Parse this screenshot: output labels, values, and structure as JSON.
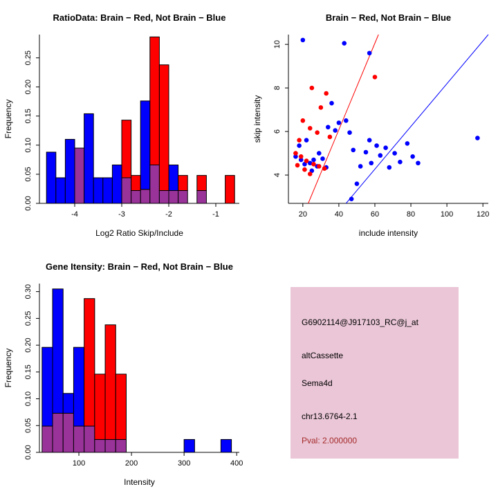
{
  "colors": {
    "brain_red": "#ff0000",
    "not_brain_blue": "#0000ff",
    "overlap_purple": "#993399",
    "panel_pink": "#eac6d6",
    "pval_red": "#a52a2a"
  },
  "chart_data": [
    {
      "id": "ratio_hist",
      "type": "bar",
      "title": "RatioData: Brain − Red, Not Brain − Blue",
      "xlabel": "Log2 Ratio Skip/Include",
      "ylabel": "Frequency",
      "xlim": [
        -4.75,
        -0.5
      ],
      "ylim": [
        0,
        0.29
      ],
      "xticks": [
        -4,
        -3,
        -2,
        -1
      ],
      "xtick_labels": [
        "-4",
        "-3",
        "-2",
        "-1"
      ],
      "yticks": [
        0,
        0.05,
        0.1,
        0.15,
        0.2,
        0.25
      ],
      "ytick_labels": [
        "0.00",
        "0.05",
        "0.10",
        "0.15",
        "0.20",
        "0.25"
      ],
      "bin_width": 0.2,
      "bin_left": [
        -4.6,
        -4.4,
        -4.2,
        -4.0,
        -3.8,
        -3.6,
        -3.4,
        -3.2,
        -3.0,
        -2.8,
        -2.6,
        -2.4,
        -2.2,
        -2.0,
        -1.8,
        -1.6,
        -1.4,
        -1.2,
        -1.0,
        -0.8
      ],
      "overlap_color": "#993399",
      "series": [
        {
          "name": "Not Brain (blue)",
          "color": "#0000ff",
          "values": [
            0.088,
            0.044,
            0.11,
            0.095,
            0.154,
            0.044,
            0.044,
            0.066,
            0.044,
            0.022,
            0.176,
            0.066,
            0.022,
            0.066,
            0.022,
            0,
            0.022,
            0,
            0,
            0
          ]
        },
        {
          "name": "Brain (red)",
          "color": "#ff0000",
          "values": [
            0,
            0,
            0,
            0.095,
            0,
            0,
            0,
            0,
            0.143,
            0.048,
            0.024,
            0.286,
            0.238,
            0.022,
            0.048,
            0,
            0.048,
            0,
            0,
            0.048
          ]
        }
      ]
    },
    {
      "id": "scatter",
      "type": "scatter",
      "title": "Brain − Red, Not Brain − Blue",
      "xlabel": "include intensity",
      "ylabel": "skip intensity",
      "xlim": [
        12,
        123
      ],
      "ylim": [
        2.7,
        10.45
      ],
      "xticks": [
        20,
        40,
        60,
        80,
        100,
        120
      ],
      "xtick_labels": [
        "20",
        "40",
        "60",
        "80",
        "100",
        "120"
      ],
      "yticks": [
        4,
        6,
        8,
        10
      ],
      "ytick_labels": [
        "4",
        "6",
        "8",
        "10"
      ],
      "series": [
        {
          "name": "Not Brain (blue)",
          "color": "#0000ff",
          "points": [
            [
              20,
              10.2
            ],
            [
              43,
              10.05
            ],
            [
              57,
              9.6
            ],
            [
              36,
              7.3
            ],
            [
              40,
              6.4
            ],
            [
              44,
              6.5
            ],
            [
              38,
              6.05
            ],
            [
              46,
              5.95
            ],
            [
              34,
              6.2
            ],
            [
              22,
              5.6
            ],
            [
              18,
              5.35
            ],
            [
              16,
              4.85
            ],
            [
              19,
              4.7
            ],
            [
              21,
              4.5
            ],
            [
              24,
              4.55
            ],
            [
              26,
              4.7
            ],
            [
              28,
              4.4
            ],
            [
              31,
              4.75
            ],
            [
              33,
              4.35
            ],
            [
              25,
              4.2
            ],
            [
              29,
              5.0
            ],
            [
              48,
              5.15
            ],
            [
              52,
              4.4
            ],
            [
              55,
              5.05
            ],
            [
              58,
              4.55
            ],
            [
              61,
              5.35
            ],
            [
              63,
              4.9
            ],
            [
              66,
              5.25
            ],
            [
              68,
              4.35
            ],
            [
              71,
              5.0
            ],
            [
              74,
              4.6
            ],
            [
              78,
              5.45
            ],
            [
              81,
              4.85
            ],
            [
              84,
              4.55
            ],
            [
              117,
              5.7
            ],
            [
              47,
              2.9
            ],
            [
              50,
              3.6
            ],
            [
              57,
              5.6
            ]
          ]
        },
        {
          "name": "Brain (red)",
          "color": "#ff0000",
          "points": [
            [
              25,
              8.0
            ],
            [
              33,
              7.75
            ],
            [
              30,
              7.1
            ],
            [
              60,
              8.5
            ],
            [
              20,
              6.5
            ],
            [
              24,
              6.15
            ],
            [
              28,
              5.95
            ],
            [
              18,
              5.6
            ],
            [
              35,
              5.75
            ],
            [
              16,
              5.0
            ],
            [
              19,
              4.85
            ],
            [
              22,
              4.65
            ],
            [
              26,
              4.5
            ],
            [
              29,
              4.4
            ],
            [
              21,
              4.25
            ],
            [
              24,
              4.05
            ],
            [
              32,
              4.3
            ],
            [
              17,
              4.45
            ]
          ]
        }
      ],
      "lines": [
        {
          "name": "brain-fit-line",
          "color": "#ff0000",
          "points": [
            [
              23,
              2.7
            ],
            [
              62,
              10.45
            ]
          ]
        },
        {
          "name": "not-brain-fit-line",
          "color": "#0000ff",
          "points": [
            [
              44,
              2.7
            ],
            [
              123,
              10.45
            ]
          ]
        }
      ]
    },
    {
      "id": "gene_hist",
      "type": "bar",
      "title": "Gene Itensity: Brain − Red, Not Brain − Blue",
      "xlabel": "Intensity",
      "ylabel": "Frequency",
      "xlim": [
        25,
        405
      ],
      "ylim": [
        0,
        0.315
      ],
      "xticks": [
        100,
        200,
        300,
        400
      ],
      "xtick_labels": [
        "100",
        "200",
        "300",
        "400"
      ],
      "yticks": [
        0,
        0.05,
        0.1,
        0.15,
        0.2,
        0.25,
        0.3
      ],
      "ytick_labels": [
        "0.00",
        "0.05",
        "0.10",
        "0.15",
        "0.20",
        "0.25",
        "0.30"
      ],
      "bin_width": 20,
      "bin_left": [
        30,
        50,
        70,
        90,
        110,
        130,
        150,
        170,
        300,
        370
      ],
      "overlap_color": "#993399",
      "series": [
        {
          "name": "Not Brain (blue)",
          "color": "#0000ff",
          "values": [
            0.196,
            0.305,
            0.11,
            0.196,
            0.049,
            0.024,
            0.024,
            0.024,
            0.024,
            0.024
          ]
        },
        {
          "name": "Brain (red)",
          "color": "#ff0000",
          "values": [
            0.049,
            0.073,
            0.073,
            0.049,
            0.287,
            0.146,
            0.238,
            0.146,
            0,
            0
          ]
        }
      ]
    }
  ],
  "info_panel": {
    "bg_color": "#eac6d6",
    "pval_color": "#a52a2a",
    "lines": [
      "G6902114@J917103_RC@j_at",
      "altCassette",
      "Sema4d",
      "chr13.6764-2.1"
    ],
    "pval": "Pval: 2.000000"
  }
}
